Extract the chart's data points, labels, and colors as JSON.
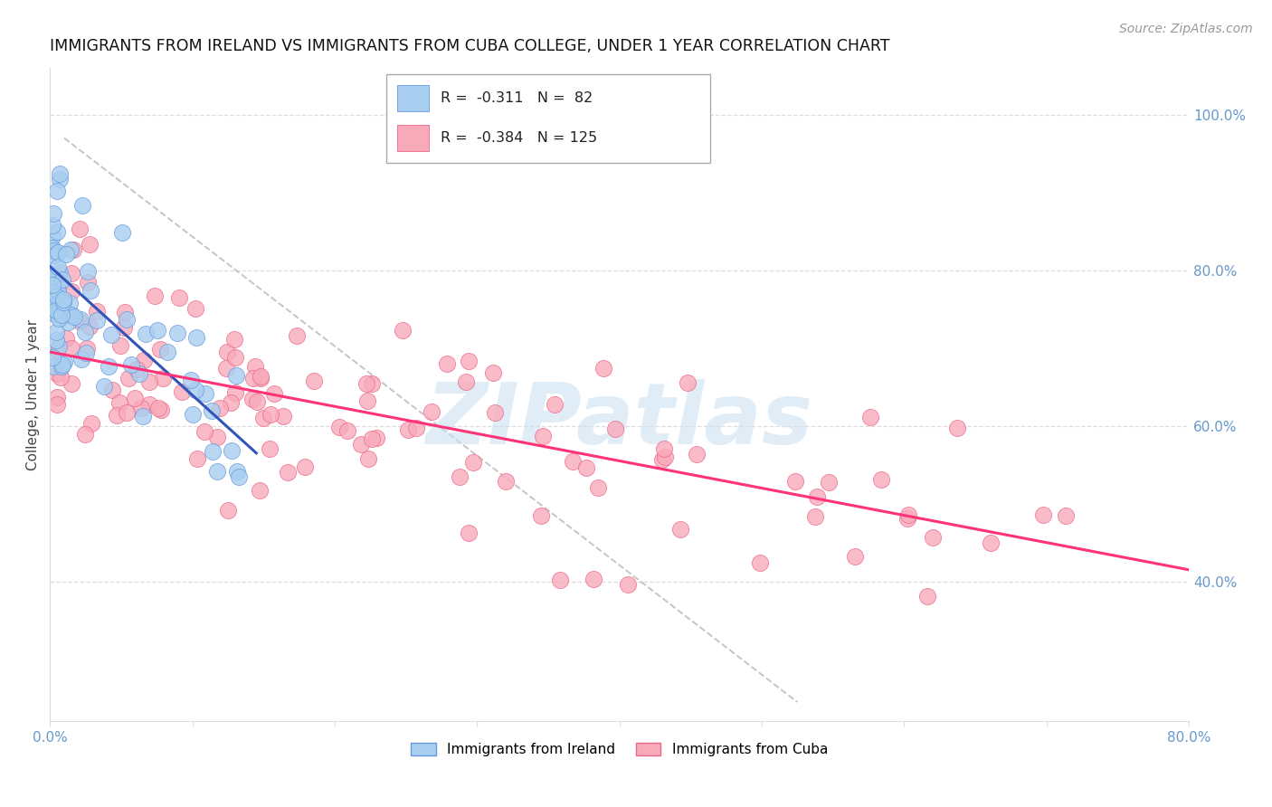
{
  "title": "IMMIGRANTS FROM IRELAND VS IMMIGRANTS FROM CUBA COLLEGE, UNDER 1 YEAR CORRELATION CHART",
  "source": "Source: ZipAtlas.com",
  "ylabel": "College, Under 1 year",
  "xlim": [
    0.0,
    0.8
  ],
  "ylim": [
    0.22,
    1.06
  ],
  "right_yticks": [
    1.0,
    0.8,
    0.6,
    0.4
  ],
  "right_yticklabels": [
    "100.0%",
    "80.0%",
    "60.0%",
    "40.0%"
  ],
  "xtick_positions": [
    0.0,
    0.1,
    0.2,
    0.3,
    0.4,
    0.5,
    0.6,
    0.7,
    0.8
  ],
  "xticklabels": [
    "0.0%",
    "",
    "",
    "",
    "",
    "",
    "",
    "",
    "80.0%"
  ],
  "legend_r_ireland": "-0.311",
  "legend_n_ireland": "82",
  "legend_r_cuba": "-0.384",
  "legend_n_cuba": "125",
  "color_ireland_fill": "#a8cef0",
  "color_ireland_edge": "#6699dd",
  "color_cuba_fill": "#f8aabb",
  "color_cuba_edge": "#ee6688",
  "color_ireland_line": "#3355bb",
  "color_cuba_line": "#ff3377",
  "color_dashed": "#bbbbbb",
  "tick_color": "#6699cc",
  "grid_color": "#dddddd",
  "background_color": "#ffffff",
  "watermark_text": "ZIPatlas",
  "watermark_color": "#c8dff0",
  "ireland_line_x": [
    0.0,
    0.145
  ],
  "ireland_line_y": [
    0.805,
    0.565
  ],
  "cuba_line_x": [
    0.0,
    0.8
  ],
  "cuba_line_y": [
    0.695,
    0.415
  ],
  "dash_line_x": [
    0.01,
    0.525
  ],
  "dash_line_y": [
    0.97,
    0.245
  ],
  "seed": 77
}
